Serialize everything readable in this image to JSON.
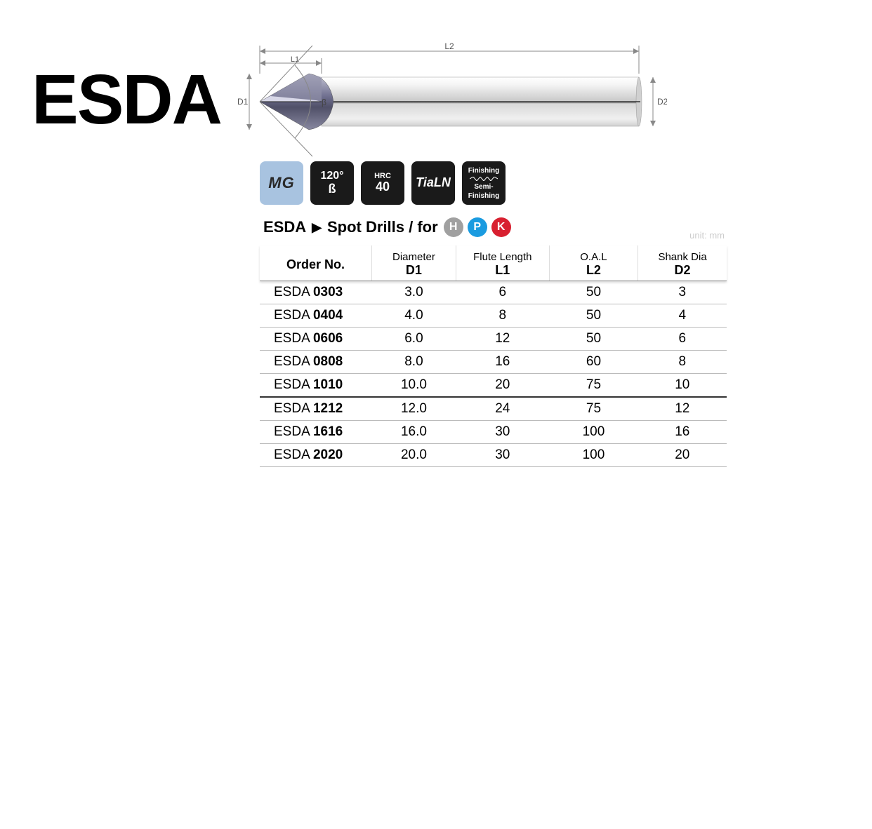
{
  "title": "ESDA",
  "diagram": {
    "labels": {
      "D1": "D1",
      "D2": "D2",
      "L1": "L1",
      "L2": "L2",
      "beta": "β"
    },
    "colors": {
      "tip_fill": "#6a6a88",
      "tip_highlight": "#b0b0c0",
      "shank_fill": "#e8e8e8",
      "shank_shadow": "#b8b8b8",
      "dim_line": "#888888",
      "text": "#555555"
    }
  },
  "badges": [
    {
      "type": "mg",
      "text": "MG",
      "bg": "#a8c3e0",
      "fg": "#2a2a2a"
    },
    {
      "type": "two",
      "line1": "120°",
      "line2": "ß",
      "bg": "#1a1a1a",
      "fg": "#ffffff"
    },
    {
      "type": "two",
      "line1": "HRC",
      "line2": "40",
      "bg": "#1a1a1a",
      "fg": "#ffffff",
      "small_top": true
    },
    {
      "type": "single",
      "text": "TiaLN",
      "bg": "#1a1a1a",
      "fg": "#ffffff"
    },
    {
      "type": "fin",
      "line1": "Finishing",
      "line2": "Semi-",
      "line3": "Finishing",
      "bg": "#1a1a1a",
      "fg": "#ffffff"
    }
  ],
  "subtitle": {
    "series": "ESDA",
    "desc": "Spot Drills / for",
    "tags": [
      {
        "letter": "H",
        "color": "#a0a0a0"
      },
      {
        "letter": "P",
        "color": "#1a9be0"
      },
      {
        "letter": "K",
        "color": "#d82030"
      }
    ]
  },
  "unit_label": "unit: mm",
  "table": {
    "columns": [
      {
        "label": "Order No.",
        "sub": ""
      },
      {
        "label": "Diameter",
        "sub": "D1"
      },
      {
        "label": "Flute Length",
        "sub": "L1"
      },
      {
        "label": "O.A.L",
        "sub": "L2"
      },
      {
        "label": "Shank Dia",
        "sub": "D2"
      }
    ],
    "col_widths": [
      "24%",
      "18%",
      "20%",
      "19%",
      "19%"
    ],
    "rows": [
      {
        "order_prefix": "ESDA ",
        "order_suffix": "0303",
        "d1": "3.0",
        "l1": "6",
        "l2": "50",
        "d2": "3",
        "heavy": false
      },
      {
        "order_prefix": "ESDA ",
        "order_suffix": "0404",
        "d1": "4.0",
        "l1": "8",
        "l2": "50",
        "d2": "4",
        "heavy": false
      },
      {
        "order_prefix": "ESDA ",
        "order_suffix": "0606",
        "d1": "6.0",
        "l1": "12",
        "l2": "50",
        "d2": "6",
        "heavy": false
      },
      {
        "order_prefix": "ESDA ",
        "order_suffix": "0808",
        "d1": "8.0",
        "l1": "16",
        "l2": "60",
        "d2": "8",
        "heavy": false
      },
      {
        "order_prefix": "ESDA ",
        "order_suffix": "1010",
        "d1": "10.0",
        "l1": "20",
        "l2": "75",
        "d2": "10",
        "heavy": true
      },
      {
        "order_prefix": "ESDA ",
        "order_suffix": "1212",
        "d1": "12.0",
        "l1": "24",
        "l2": "75",
        "d2": "12",
        "heavy": false
      },
      {
        "order_prefix": "ESDA ",
        "order_suffix": "1616",
        "d1": "16.0",
        "l1": "30",
        "l2": "100",
        "d2": "16",
        "heavy": false
      },
      {
        "order_prefix": "ESDA ",
        "order_suffix": "2020",
        "d1": "20.0",
        "l1": "30",
        "l2": "100",
        "d2": "20",
        "heavy": false
      }
    ]
  }
}
